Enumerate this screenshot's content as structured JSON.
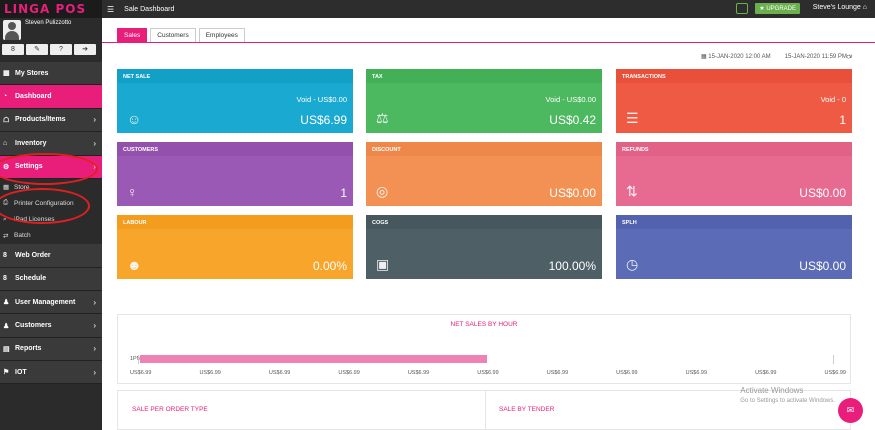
{
  "app": {
    "logo": "LINGA POS",
    "user_name": "Steven Pulizzotto",
    "title": "Sale Dashboard",
    "upgrade": "UPGRADE",
    "location": "Steve's Lounge"
  },
  "user_buttons": [
    "8",
    "✎",
    "?",
    "➔"
  ],
  "nav": [
    {
      "label": "My Stores",
      "icon": "▦",
      "chev": ""
    },
    {
      "label": "Dashboard",
      "icon": "◔",
      "chev": "",
      "active": true
    },
    {
      "label": "Products/Items",
      "icon": "☖",
      "chev": "›"
    },
    {
      "label": "Inventory",
      "icon": "⌂",
      "chev": "›"
    },
    {
      "label": "Settings",
      "icon": "⚙",
      "chev": "›",
      "active": true
    }
  ],
  "settings_sub": [
    {
      "label": "Store",
      "icon": "▦"
    },
    {
      "label": "Printer Configuration",
      "icon": "⎙"
    },
    {
      "label": "iPad Licenses",
      "icon": "⌕"
    },
    {
      "label": "Batch",
      "icon": "⇄"
    }
  ],
  "nav2": [
    {
      "label": "Web Order",
      "icon": "8",
      "chev": ""
    },
    {
      "label": "Schedule",
      "icon": "8",
      "chev": ""
    },
    {
      "label": "User Management",
      "icon": "♟",
      "chev": "›"
    },
    {
      "label": "Customers",
      "icon": "♟",
      "chev": "›"
    },
    {
      "label": "Reports",
      "icon": "▤",
      "chev": "›"
    },
    {
      "label": "IOT",
      "icon": "⚑",
      "chev": "›"
    }
  ],
  "tabs": [
    "Sales",
    "Customers",
    "Employees"
  ],
  "date_from": "15-JAN-2020 12:00 AM",
  "date_to": "15-JAN-2020 11:59 PM",
  "cards": [
    {
      "title": "NET SALE",
      "sub": "Void - US$0.00",
      "value": "US$6.99",
      "color": "#1aa9d0",
      "hdr": "#13a0c7",
      "icon": "☺"
    },
    {
      "title": "TAX",
      "sub": "Void - US$0.00",
      "value": "US$0.42",
      "color": "#4cb860",
      "hdr": "#43af57",
      "icon": "⚖"
    },
    {
      "title": "TRANSACTIONS",
      "sub": "Void - 0",
      "value": "1",
      "color": "#ef5a44",
      "hdr": "#e8503a",
      "icon": "☰"
    },
    {
      "title": "CUSTOMERS",
      "sub": "",
      "value": "1",
      "color": "#9b59b6",
      "hdr": "#9351ad",
      "icon": "♀"
    },
    {
      "title": "DISCOUNT",
      "sub": "",
      "value": "US$0.00",
      "color": "#f39155",
      "hdr": "#ee884a",
      "icon": "◎"
    },
    {
      "title": "REFUNDS",
      "sub": "",
      "value": "US$0.00",
      "color": "#e76a90",
      "hdr": "#e26187",
      "icon": "⇅"
    },
    {
      "title": "LABOUR",
      "sub": "",
      "value": "0.00%",
      "color": "#f7a52b",
      "hdr": "#f39c1e",
      "icon": "☻"
    },
    {
      "title": "COGS",
      "sub": "",
      "value": "100.00%",
      "color": "#4f5f66",
      "hdr": "#47575e",
      "icon": "▣"
    },
    {
      "title": "SPLH",
      "sub": "",
      "value": "US$0.00",
      "color": "#5b6bb5",
      "hdr": "#5262ae",
      "icon": "◷"
    }
  ],
  "chart_data": {
    "type": "bar",
    "title": "NET SALES BY HOUR",
    "categories": [
      "1PM"
    ],
    "values": [
      6.99
    ],
    "xlim": [
      0,
      14
    ],
    "x_ticks": [
      "US$6.99",
      "US$6.99",
      "US$6.99",
      "US$6.99",
      "US$6.99",
      "US$6.99",
      "US$6.99",
      "US$6.99",
      "US$6.99",
      "US$6.99",
      "US$6.99"
    ]
  },
  "bottom": {
    "left": "SALE PER ORDER TYPE",
    "right": "SALE BY TENDER"
  },
  "watermark": {
    "line1": "Activate Windows",
    "line2": "Go to Settings to activate Windows."
  }
}
